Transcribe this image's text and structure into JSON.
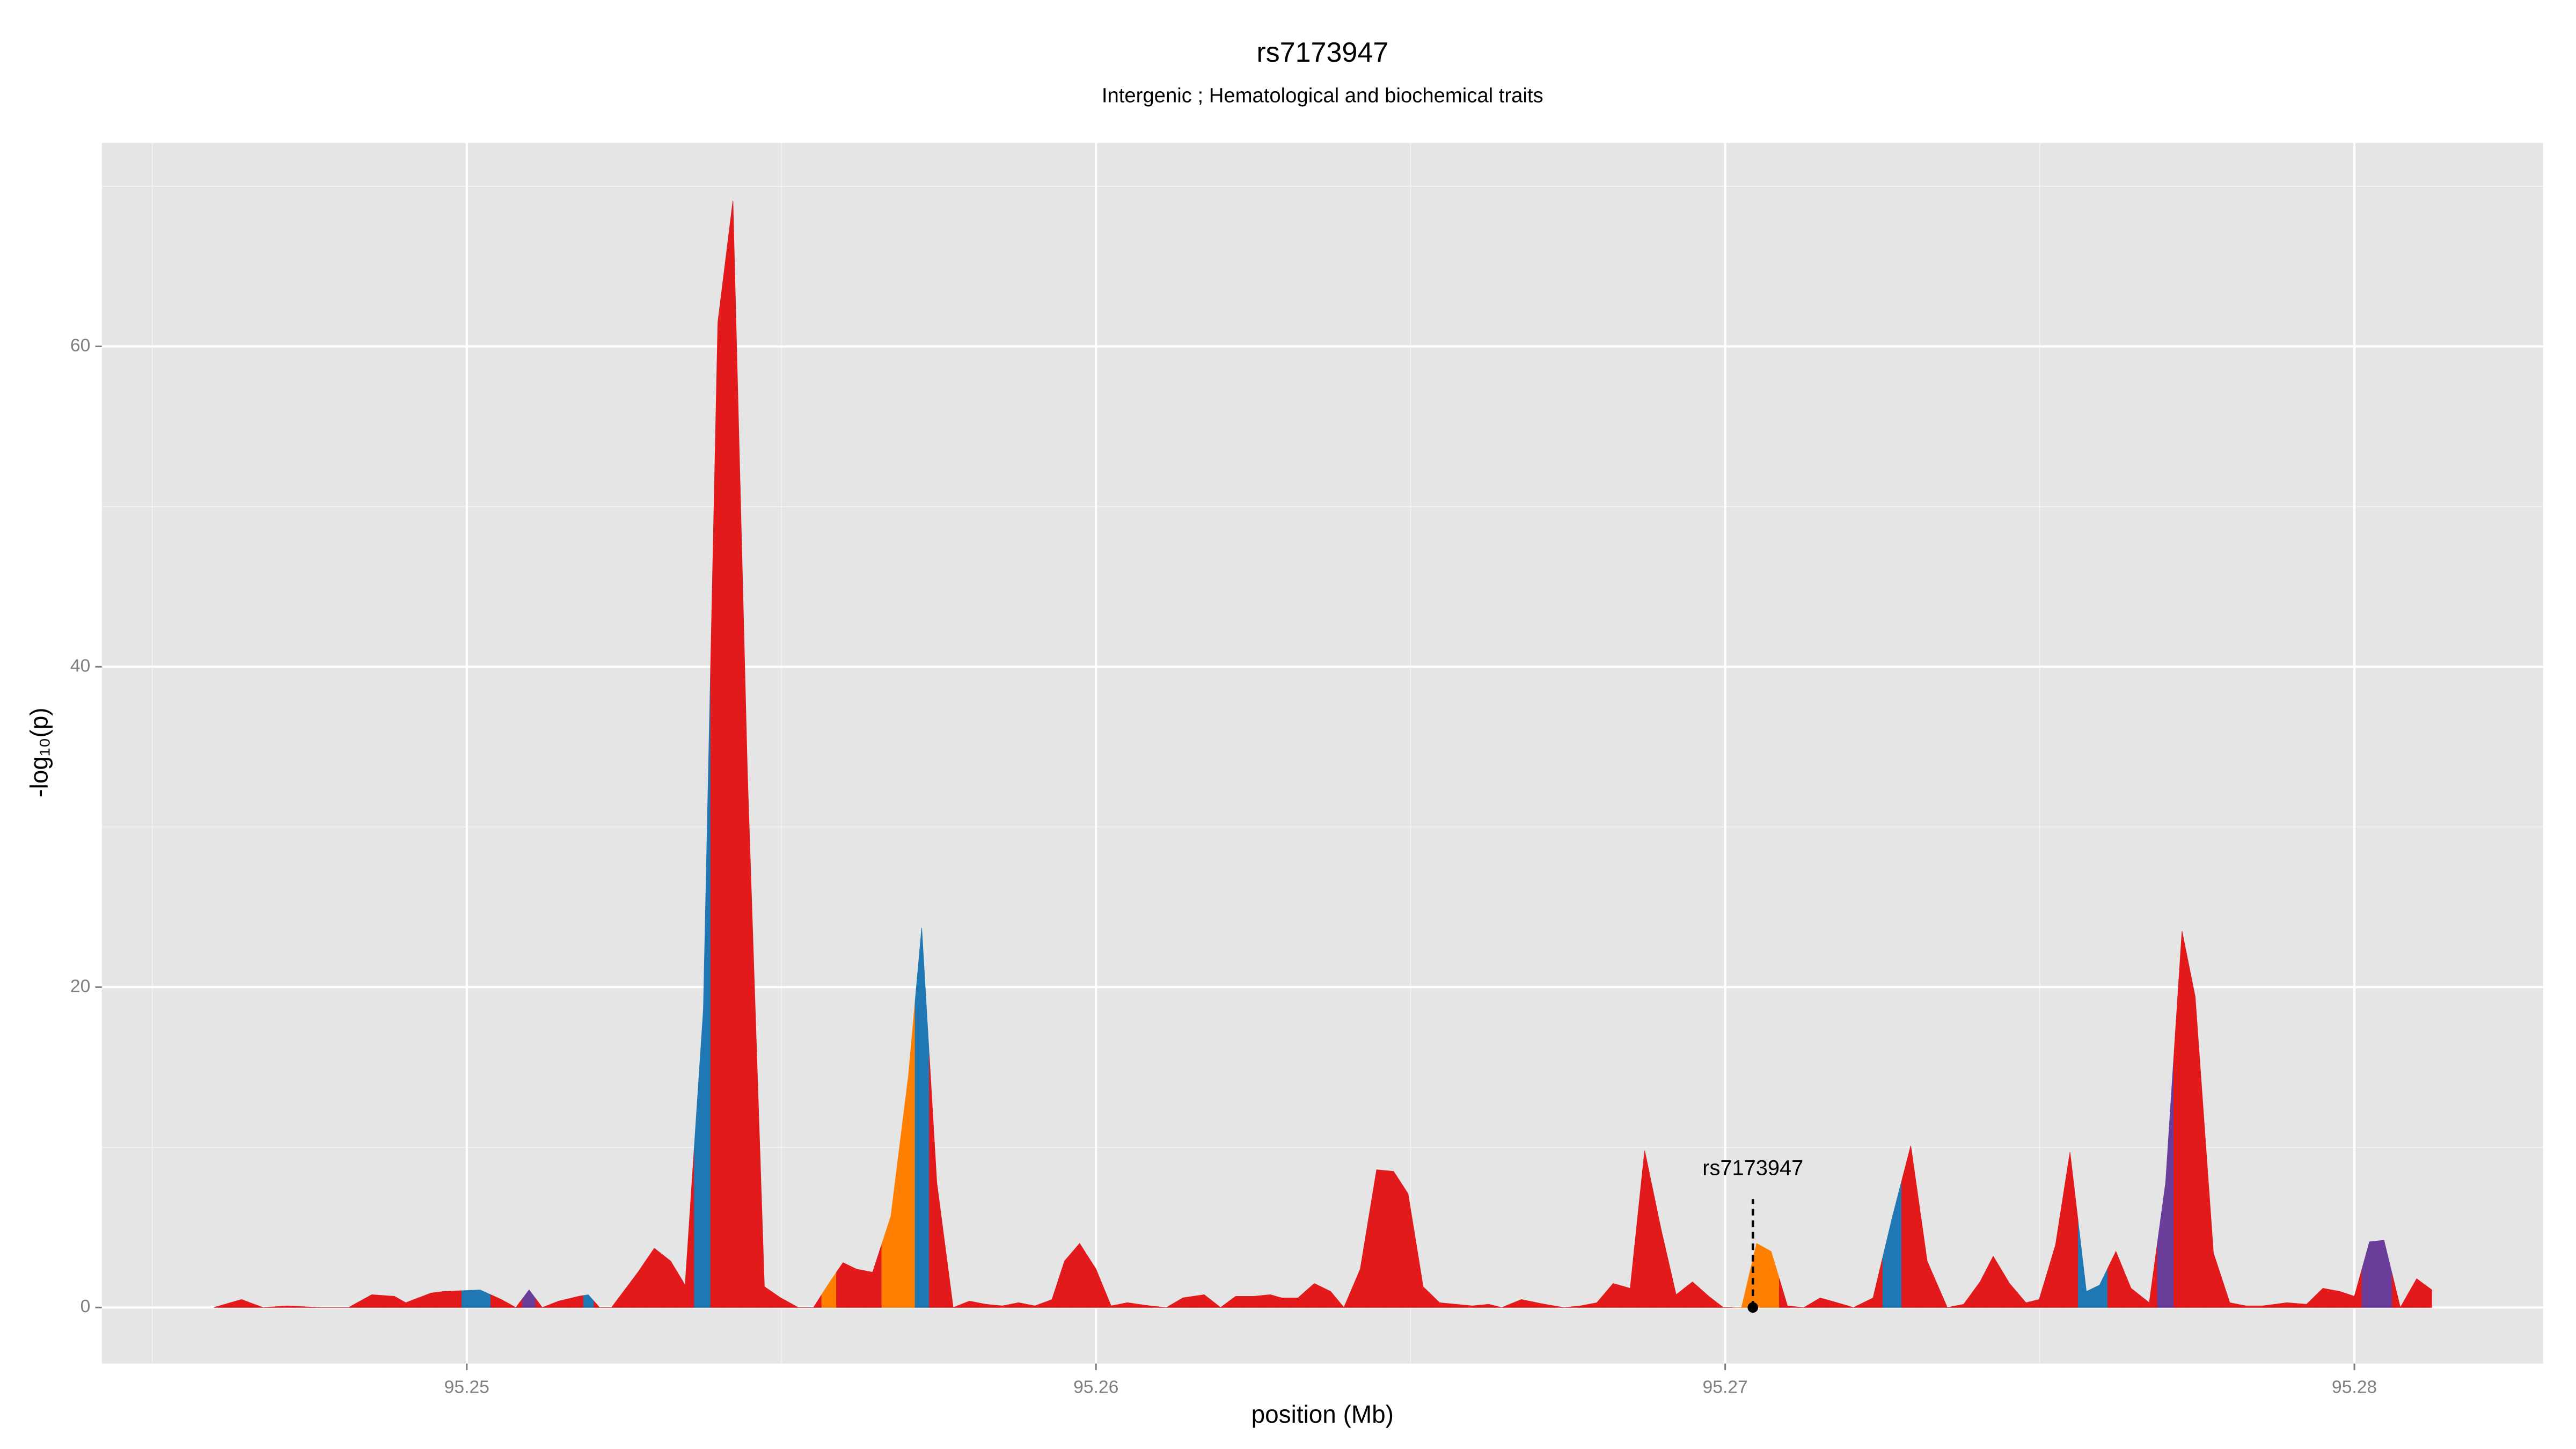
{
  "chart_data": {
    "type": "area",
    "title": "rs7173947",
    "subtitle": "Intergenic ; Hematological and biochemical traits",
    "x_label": "position (Mb)",
    "y_label": "-log₁₀(p)",
    "x": [
      95.24598,
      95.24642,
      95.24676,
      95.24715,
      95.24768,
      95.24812,
      95.24849,
      95.24885,
      95.24903,
      95.24943,
      95.24963,
      95.25021,
      95.25055,
      95.25078,
      95.25099,
      95.2512,
      95.25146,
      95.25178,
      95.25193,
      95.25211,
      95.2523,
      95.25251,
      95.25272,
      95.25298,
      95.25324,
      95.25347,
      95.25376,
      95.25399,
      95.25423,
      95.25446,
      95.25473,
      95.25499,
      95.25527,
      95.25551,
      95.25577,
      95.25598,
      95.25619,
      95.25645,
      95.25674,
      95.25702,
      95.25723,
      95.25747,
      95.25773,
      95.25799,
      95.25825,
      95.25851,
      95.25877,
      95.25903,
      95.2593,
      95.2595,
      95.25974,
      95.26,
      95.26024,
      95.2605,
      95.26086,
      95.26112,
      95.26138,
      95.26172,
      95.26198,
      95.26222,
      95.26251,
      95.26277,
      95.26295,
      95.26321,
      95.26347,
      95.26373,
      95.26394,
      95.2642,
      95.26446,
      95.26473,
      95.26496,
      95.2652,
      95.26546,
      95.26572,
      95.26598,
      95.26624,
      95.26645,
      95.26676,
      95.26713,
      95.26744,
      95.2677,
      95.26796,
      95.26822,
      95.26849,
      95.26872,
      95.26898,
      95.26922,
      95.26948,
      95.26974,
      95.26997,
      95.27026,
      95.2705,
      95.27073,
      95.27099,
      95.27125,
      95.27151,
      95.27178,
      95.27204,
      95.27235,
      95.27266,
      95.27295,
      95.27321,
      95.27353,
      95.27379,
      95.27405,
      95.27426,
      95.27452,
      95.27478,
      95.27499,
      95.27525,
      95.27548,
      95.27574,
      95.27595,
      95.27621,
      95.27645,
      95.27674,
      95.277,
      95.27726,
      95.27747,
      95.27776,
      95.27802,
      95.27828,
      95.27854,
      95.27893,
      95.27924,
      95.2795,
      95.27977,
      95.28,
      95.28024,
      95.28047,
      95.28073,
      95.28099,
      95.28123
    ],
    "values": [
      0,
      0.5,
      0,
      0.1,
      0,
      0,
      0.8,
      0.7,
      0.3,
      0.9,
      1.0,
      1.1,
      0.5,
      0,
      1.1,
      0,
      0.4,
      0.7,
      0.8,
      0,
      0,
      1.1,
      2.2,
      3.7,
      2.9,
      1.4,
      18.6,
      61.5,
      69.1,
      33.4,
      1.3,
      0.6,
      0,
      0,
      1.6,
      2.8,
      2.4,
      2.2,
      5.7,
      14.5,
      23.7,
      7.8,
      0,
      0.4,
      0.2,
      0.1,
      0.3,
      0.1,
      0.5,
      2.9,
      4.0,
      2.4,
      0.1,
      0.3,
      0.1,
      0,
      0.6,
      0.8,
      0,
      0.7,
      0.7,
      0.8,
      0.6,
      0.6,
      1.5,
      1.0,
      0,
      2.4,
      8.6,
      8.5,
      7.1,
      1.3,
      0.3,
      0.2,
      0.1,
      0.2,
      0,
      0.5,
      0.2,
      0,
      0.1,
      0.3,
      1.5,
      1.2,
      9.8,
      4.9,
      0.8,
      1.6,
      0.7,
      0,
      0,
      4.0,
      3.5,
      0.1,
      0,
      0.6,
      0.3,
      0,
      0.6,
      5.7,
      10.1,
      2.9,
      0,
      0.2,
      1.6,
      3.2,
      1.5,
      0.3,
      0.5,
      3.9,
      9.7,
      1.0,
      1.4,
      3.5,
      1.2,
      0.3,
      7.8,
      23.5,
      19.4,
      3.4,
      0.3,
      0.1,
      0.1,
      0.3,
      0.2,
      1.2,
      1.0,
      0.7,
      4.1,
      4.2,
      0,
      1.8,
      1.1
    ],
    "point_colors": [
      "#e31a1c",
      "#e31a1c",
      "#e31a1c",
      "#e31a1c",
      "#e31a1c",
      "#e31a1c",
      "#e31a1c",
      "#e31a1c",
      "#e31a1c",
      "#e31a1c",
      "#e31a1c",
      "#1f78b4",
      "#e31a1c",
      "#e31a1c",
      "#6a3d9a",
      "#e31a1c",
      "#e31a1c",
      "#e31a1c",
      "#1f78b4",
      "#e31a1c",
      "#e31a1c",
      "#e31a1c",
      "#e31a1c",
      "#e31a1c",
      "#e31a1c",
      "#e31a1c",
      "#1f78b4",
      "#e31a1c",
      "#e31a1c",
      "#e31a1c",
      "#e31a1c",
      "#e31a1c",
      "#e31a1c",
      "#e31a1c",
      "#ff7f00",
      "#e31a1c",
      "#e31a1c",
      "#e31a1c",
      "#ff7f00",
      "#ff7f00",
      "#1f78b4",
      "#e31a1c",
      "#e31a1c",
      "#e31a1c",
      "#e31a1c",
      "#e31a1c",
      "#e31a1c",
      "#e31a1c",
      "#e31a1c",
      "#e31a1c",
      "#e31a1c",
      "#e31a1c",
      "#e31a1c",
      "#e31a1c",
      "#e31a1c",
      "#e31a1c",
      "#e31a1c",
      "#e31a1c",
      "#e31a1c",
      "#e31a1c",
      "#e31a1c",
      "#e31a1c",
      "#e31a1c",
      "#e31a1c",
      "#e31a1c",
      "#e31a1c",
      "#e31a1c",
      "#e31a1c",
      "#e31a1c",
      "#e31a1c",
      "#e31a1c",
      "#e31a1c",
      "#e31a1c",
      "#e31a1c",
      "#e31a1c",
      "#e31a1c",
      "#e31a1c",
      "#e31a1c",
      "#e31a1c",
      "#e31a1c",
      "#e31a1c",
      "#e31a1c",
      "#e31a1c",
      "#e31a1c",
      "#e31a1c",
      "#e31a1c",
      "#e31a1c",
      "#e31a1c",
      "#e31a1c",
      "#e31a1c",
      "#ff7f00",
      "#ff7f00",
      "#ff7f00",
      "#e31a1c",
      "#e31a1c",
      "#e31a1c",
      "#e31a1c",
      "#e31a1c",
      "#e31a1c",
      "#1f78b4",
      "#e31a1c",
      "#e31a1c",
      "#e31a1c",
      "#e31a1c",
      "#e31a1c",
      "#e31a1c",
      "#e31a1c",
      "#e31a1c",
      "#e31a1c",
      "#e31a1c",
      "#e31a1c",
      "#1f78b4",
      "#1f78b4",
      "#e31a1c",
      "#e31a1c",
      "#e31a1c",
      "#6a3d9a",
      "#e31a1c",
      "#e31a1c",
      "#e31a1c",
      "#e31a1c",
      "#e31a1c",
      "#e31a1c",
      "#e31a1c",
      "#e31a1c",
      "#e31a1c",
      "#e31a1c",
      "#e31a1c",
      "#6a3d9a",
      "#6a3d9a",
      "#e31a1c",
      "#e31a1c",
      "#e31a1c"
    ],
    "xlim": [
      95.2442,
      95.283
    ],
    "ylim": [
      -3.5,
      72.7
    ],
    "xticks": [
      95.25,
      95.26,
      95.27,
      95.28
    ],
    "yticks": [
      0,
      20,
      40,
      60
    ],
    "grid": true,
    "panel_color": "#e5e5e5",
    "annotation": {
      "text": "rs7173947",
      "x": 95.27044,
      "y": 0
    }
  }
}
